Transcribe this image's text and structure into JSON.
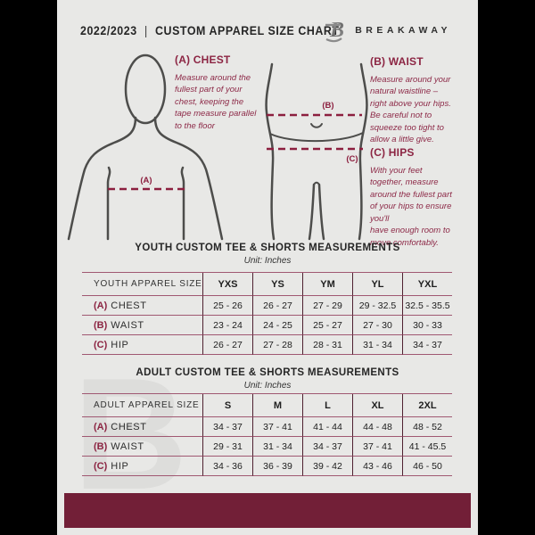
{
  "header": {
    "year": "2022/2023",
    "divider": "|",
    "title": "CUSTOM APPAREL SIZE CHART",
    "brand": "BREAKAWAY",
    "logo_letter": "B"
  },
  "measurements": [
    {
      "key": "(A)",
      "name": "CHEST",
      "heading": "(A) CHEST",
      "description": "Measure around the\nfullest part of your\nchest, keeping the\ntape measure parallel\nto the floor"
    },
    {
      "key": "(B)",
      "name": "WAIST",
      "heading": "(B) WAIST",
      "description": "Measure around your\nnatural waistline –\nright above your hips.\nBe careful not to\nsqueeze too tight to\nallow a little give."
    },
    {
      "key": "(C)",
      "name": "HIPS",
      "heading": "(C) HIPS",
      "description": "With your feet\ntogether, measure\naround the fullest part\nof your hips to ensure\nyou'll\nhave enough room to\nmove comfortably."
    }
  ],
  "diagram_labels": {
    "chest": "(A)",
    "waist": "(B)",
    "hips": "(C)"
  },
  "tables": [
    {
      "title": "YOUTH CUSTOM TEE & SHORTS MEASUREMENTS",
      "unit": "Unit: Inches",
      "size_header": "YOUTH APPAREL SIZE",
      "sizes": [
        "YXS",
        "YS",
        "YM",
        "YL",
        "YXL"
      ],
      "rows": [
        {
          "key": "(A)",
          "label": "CHEST",
          "values": [
            "25 - 26",
            "26 - 27",
            "27 - 29",
            "29 - 32.5",
            "32.5 - 35.5"
          ]
        },
        {
          "key": "(B)",
          "label": "WAIST",
          "values": [
            "23 - 24",
            "24 - 25",
            "25 - 27",
            "27 - 30",
            "30 - 33"
          ]
        },
        {
          "key": "(C)",
          "label": "HIP",
          "values": [
            "26 - 27",
            "27 - 28",
            "28 - 31",
            "31 - 34",
            "34 - 37"
          ]
        }
      ]
    },
    {
      "title": "ADULT CUSTOM TEE & SHORTS MEASUREMENTS",
      "unit": "Unit: Inches",
      "size_header": "ADULT APPAREL SIZE",
      "sizes": [
        "S",
        "M",
        "L",
        "XL",
        "2XL"
      ],
      "rows": [
        {
          "key": "(A)",
          "label": "CHEST",
          "values": [
            "34 - 37",
            "37 - 41",
            "41 - 44",
            "44 - 48",
            "48 - 52"
          ]
        },
        {
          "key": "(B)",
          "label": "WAIST",
          "values": [
            "29 - 31",
            "31 - 34",
            "34 - 37",
            "37 - 41",
            "41 - 45.5"
          ]
        },
        {
          "key": "(C)",
          "label": "HIP",
          "values": [
            "34 - 36",
            "36 - 39",
            "39 - 42",
            "43 - 46",
            "46 - 50"
          ]
        }
      ]
    }
  ],
  "colors": {
    "accent": "#8c2543",
    "dash": "#8c1f3f",
    "footer_bar": "#721f37",
    "flyer_background": "#e8e8e6",
    "letterbox": "#000000"
  }
}
